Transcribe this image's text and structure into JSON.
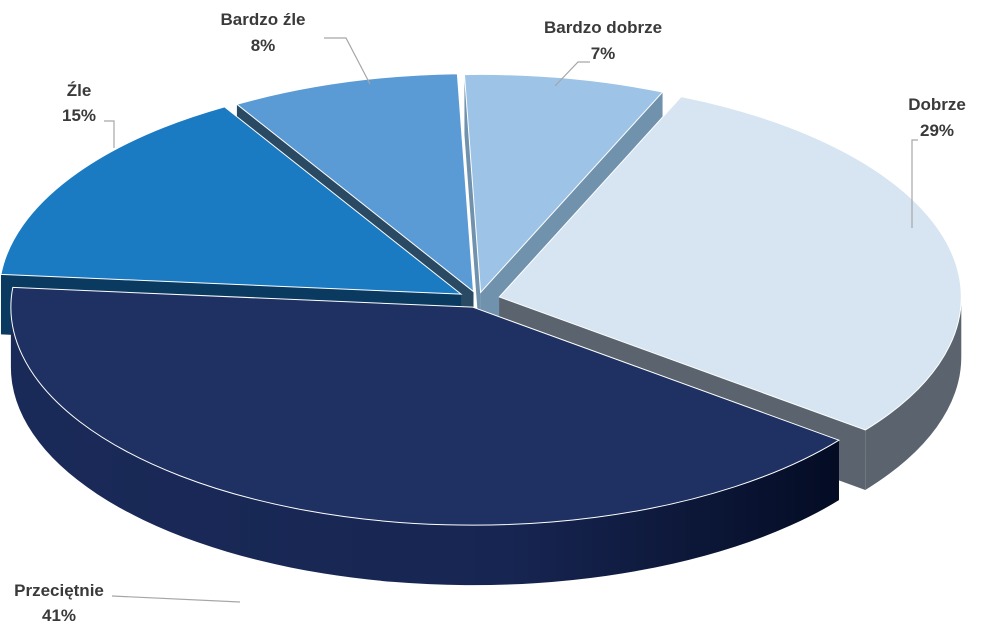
{
  "chart_data": {
    "type": "pie",
    "style": "3d-exploded",
    "title": "",
    "series": [
      {
        "name": "",
        "slices": [
          {
            "label": "Bardzo dobrze",
            "value": 7,
            "value_label": "7%",
            "color": "#9dc3e6",
            "side_color": "#7092ad"
          },
          {
            "label": "Dobrze",
            "value": 29,
            "value_label": "29%",
            "color": "#d6e5f1",
            "side_color": "#5b646e"
          },
          {
            "label": "Przeciętnie",
            "value": 41,
            "value_label": "41%",
            "color": "#1f3162",
            "side_color": "#101d42"
          },
          {
            "label": "Źle",
            "value": 15,
            "value_label": "15%",
            "color": "#1a7bc3",
            "side_color": "#0b3a60"
          },
          {
            "label": "Bardzo źle",
            "value": 8,
            "value_label": "8%",
            "color": "#5b9bd5",
            "side_color": "#2a4a64"
          }
        ]
      }
    ],
    "legend": "none",
    "data_labels": "outside-with-leader-lines"
  }
}
